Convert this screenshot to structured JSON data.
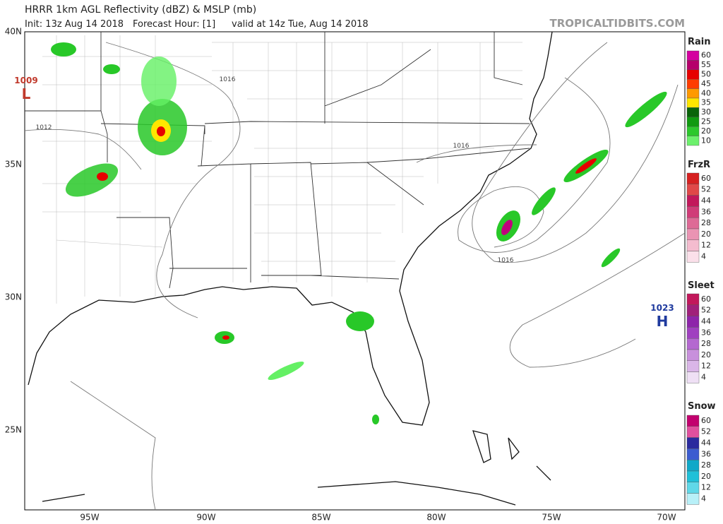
{
  "header": {
    "title": "HRRR 1km AGL Reflectivity (dBZ) & MSLP (mb)",
    "init": "Init: 13z Aug 14 2018",
    "forecast_hour": "Forecast Hour: [1]",
    "valid": "valid at 14z Tue, Aug 14 2018",
    "watermark": "TROPICALTIDBITS.COM"
  },
  "axes": {
    "lat_labels": [
      "40N",
      "35N",
      "30N",
      "25N"
    ],
    "lon_labels": [
      "95W",
      "90W",
      "85W",
      "80W",
      "75W",
      "70W"
    ]
  },
  "pressure_centers": [
    {
      "value": "1009",
      "symbol": "L"
    },
    {
      "value": "1023",
      "symbol": "H"
    }
  ],
  "isobar_labels": [
    "1016",
    "1012",
    "1016",
    "1016"
  ],
  "legends": [
    {
      "title": "Rain",
      "labels": [
        60,
        55,
        50,
        45,
        40,
        35,
        30,
        25,
        20,
        10
      ],
      "colors": [
        "#d4009f",
        "#b5006b",
        "#e60000",
        "#ff3c00",
        "#ff9900",
        "#ffe600",
        "#0a640a",
        "#109a10",
        "#2cc82c",
        "#6cf06c"
      ]
    },
    {
      "title": "FrzR",
      "labels": [
        60,
        52,
        44,
        36,
        28,
        20,
        12,
        4
      ],
      "colors": [
        "#d62020",
        "#e04848",
        "#c2185b",
        "#d03c78",
        "#de6a96",
        "#ea94b3",
        "#f4bccf",
        "#fbe0ea"
      ]
    },
    {
      "title": "Sleet",
      "labels": [
        60,
        52,
        44,
        36,
        28,
        20,
        12,
        4
      ],
      "colors": [
        "#c2185b",
        "#a0207a",
        "#8e24aa",
        "#a040c0",
        "#b468d0",
        "#c890dc",
        "#dab6e8",
        "#efe0f5"
      ]
    },
    {
      "title": "Snow",
      "labels": [
        60,
        52,
        44,
        36,
        28,
        20,
        12,
        4
      ],
      "colors": [
        "#c2006e",
        "#e0509e",
        "#2a2a9e",
        "#3b5cd0",
        "#10a8c8",
        "#20c0d8",
        "#60d8e8",
        "#b8f0f8"
      ]
    }
  ]
}
